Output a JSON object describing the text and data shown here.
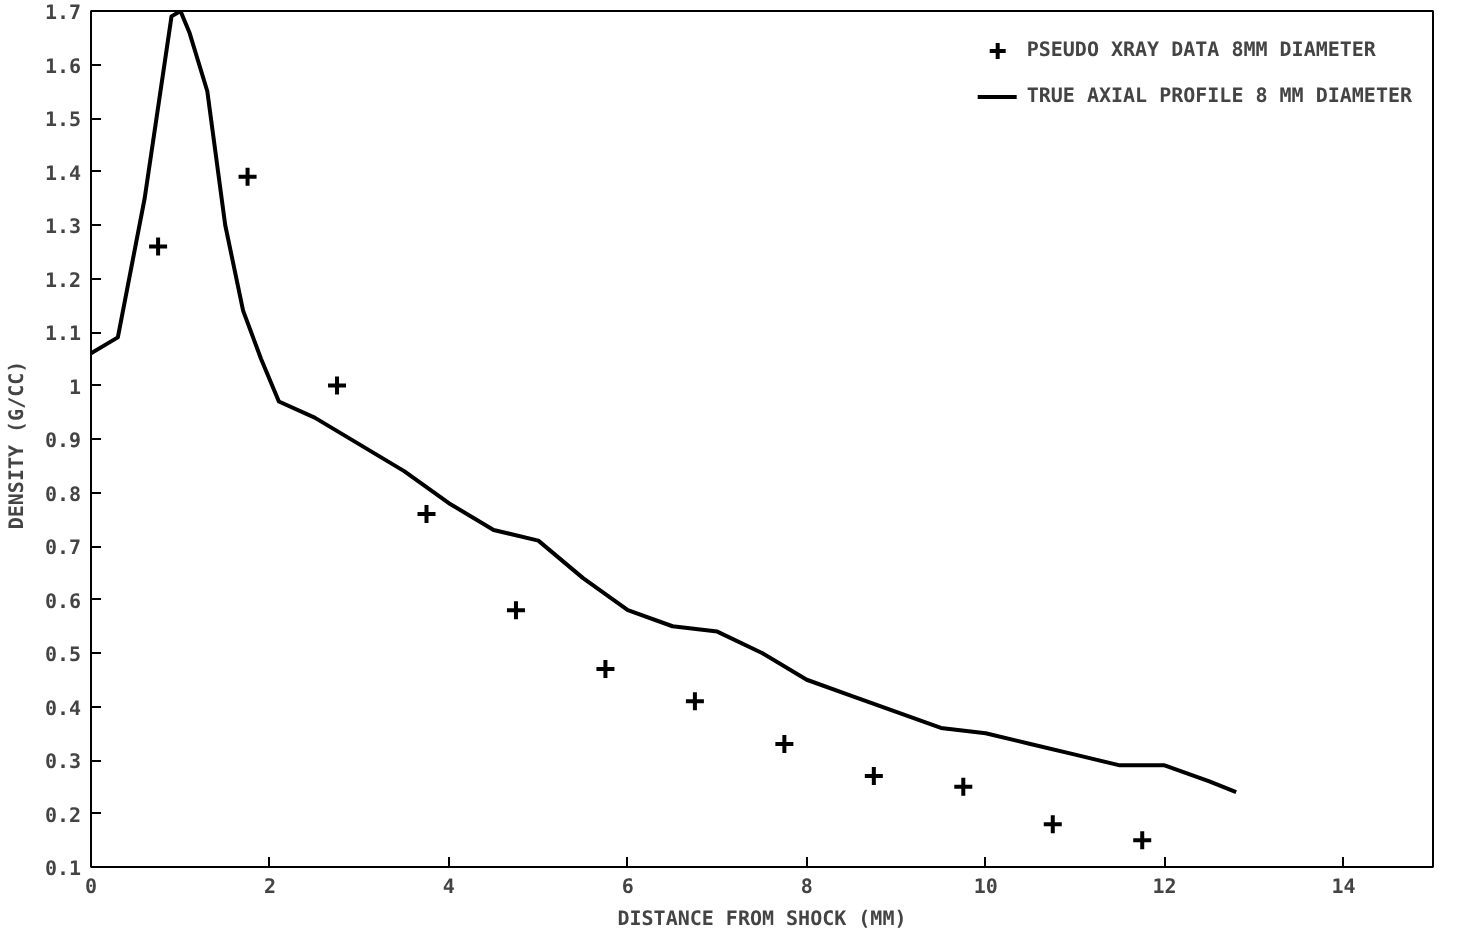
{
  "chart_data": {
    "type": "line",
    "xlabel": "DISTANCE FROM SHOCK (MM)",
    "ylabel": "DENSITY  (G/CC)",
    "xlim": [
      0,
      15
    ],
    "xticks": [
      0,
      2,
      4,
      6,
      8,
      10,
      12,
      14
    ],
    "ylim": [
      0.1,
      1.7
    ],
    "yticks": [
      0.1,
      0.2,
      0.3,
      0.4,
      0.5,
      0.6,
      0.7,
      0.8,
      0.9,
      1,
      1.1,
      1.2,
      1.3,
      1.4,
      1.5,
      1.6,
      1.7
    ],
    "grid": false,
    "legend": "top right",
    "series": [
      {
        "name": "PSEUDO XRAY DATA 8MM DIAMETER",
        "type": "scatter",
        "marker": "cross",
        "color": "#000000",
        "x": [
          0.75,
          1.75,
          2.75,
          3.75,
          4.75,
          5.75,
          6.75,
          7.75,
          8.75,
          9.75,
          10.75,
          11.75
        ],
        "values": [
          1.26,
          1.39,
          1.0,
          0.76,
          0.58,
          0.47,
          0.41,
          0.33,
          0.27,
          0.25,
          0.18,
          0.15
        ]
      },
      {
        "name": "TRUE AXIAL PROFILE 8 MM DIAMETER",
        "color": "#000000",
        "x": [
          0,
          0.3,
          0.6,
          0.9,
          1.0,
          1.1,
          1.3,
          1.5,
          1.7,
          1.9,
          2.1,
          2.5,
          3,
          3.5,
          4,
          4.5,
          5,
          5.5,
          6,
          6.5,
          7,
          7.5,
          8,
          8.5,
          9,
          9.5,
          10,
          10.5,
          11,
          11.5,
          12,
          12.5,
          12.8
        ],
        "values": [
          1.06,
          1.09,
          1.35,
          1.69,
          1.7,
          1.66,
          1.55,
          1.3,
          1.14,
          1.05,
          0.97,
          0.94,
          0.89,
          0.84,
          0.78,
          0.73,
          0.71,
          0.64,
          0.58,
          0.55,
          0.54,
          0.5,
          0.45,
          0.42,
          0.39,
          0.36,
          0.35,
          0.33,
          0.31,
          0.29,
          0.29,
          0.26,
          0.24
        ]
      }
    ]
  }
}
